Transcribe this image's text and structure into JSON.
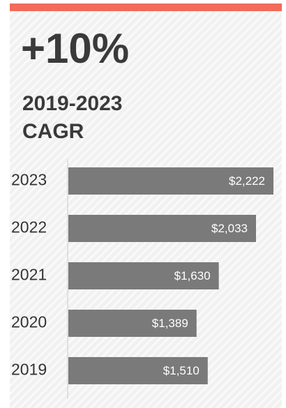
{
  "chart_data": {
    "type": "bar",
    "orientation": "horizontal",
    "title": "+10%",
    "subtitle": [
      "2019-2023",
      "CAGR"
    ],
    "categories": [
      "2023",
      "2022",
      "2021",
      "2020",
      "2019"
    ],
    "values": [
      2222,
      2033,
      1630,
      1389,
      1510
    ],
    "value_labels": [
      "$2,222",
      "$2,033",
      "$1,630",
      "$1,389",
      "$1,510"
    ],
    "color": "#7a7a7a",
    "accent_color": "#f26b5b"
  }
}
